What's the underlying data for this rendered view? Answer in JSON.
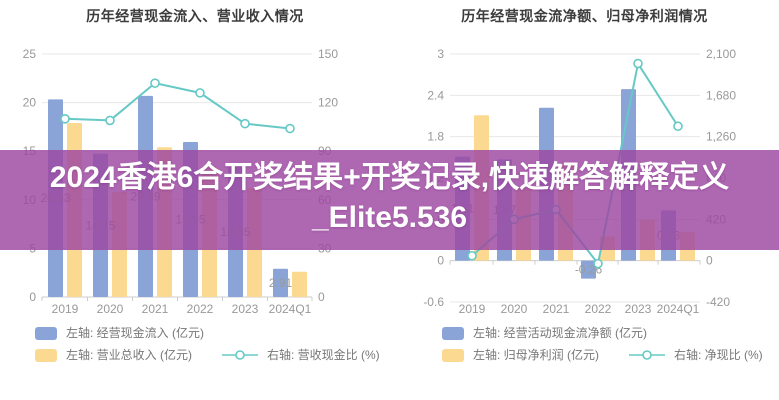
{
  "banner": {
    "line1": "2024香港6合开奖结果+开奖记录,快速解答解释定义",
    "line2": "_Elite5.536",
    "bg_color": "#9C47A1",
    "text_color": "#ffffff"
  },
  "chart_data": [
    {
      "type": "bar+line",
      "title": "历年经营现金流入、营业收入情况",
      "categories": [
        "2019",
        "2020",
        "2021",
        "2022",
        "2023",
        "2024Q1"
      ],
      "left_axis": {
        "ticks": [
          25,
          20,
          15,
          10,
          5,
          0
        ],
        "labels": [
          "25",
          "20",
          "15",
          "10",
          "5",
          "0"
        ],
        "min": 0,
        "max": 25
      },
      "right_axis": {
        "labels": [
          "150",
          "120",
          "90",
          "60",
          "30",
          "0"
        ],
        "min": 0,
        "max": 150
      },
      "series": [
        {
          "name": "左轴: 经营现金流入 (亿元)",
          "kind": "bar",
          "axis": "left",
          "color": "#8aa4d8",
          "values": [
            20.33,
            14.75,
            20.69,
            15.95,
            13.35,
            2.91
          ],
          "labels": [
            "20.33",
            "14.75",
            "20.69",
            "15.95",
            "13.35",
            "2.91"
          ]
        },
        {
          "name": "左轴: 营业总收入 (亿元)",
          "kind": "bar",
          "axis": "left",
          "color": "#fbd991",
          "values": [
            17.9,
            10.8,
            15.4,
            13.4,
            11.2,
            2.6
          ],
          "labels": [
            "",
            "",
            "",
            "",
            "",
            ""
          ]
        },
        {
          "name": "右轴: 营收现金比 (%)",
          "kind": "line",
          "axis": "right",
          "color": "#66c9c5",
          "values": [
            110,
            109,
            132,
            126,
            107,
            104
          ],
          "labels": [
            "",
            "",
            "",
            "",
            "",
            ""
          ]
        }
      ]
    },
    {
      "type": "bar+line",
      "title": "历年经营现金流净额、归母净利润情况",
      "categories": [
        "2019",
        "2020",
        "2021",
        "2022",
        "2023",
        "2024Q1"
      ],
      "left_axis": {
        "ticks": [
          3,
          2.4,
          1.8,
          1.2,
          0.6,
          0,
          -0.6
        ],
        "labels": [
          "3",
          "2.4",
          "1.8",
          "1.2",
          "0.6",
          "0",
          "-0.6"
        ],
        "min": -0.6,
        "max": 3
      },
      "right_axis": {
        "labels": [
          "2,100",
          "1,680",
          "1,260",
          "840",
          "420",
          "0",
          "-420"
        ],
        "min": -420,
        "max": 2100
      },
      "series": [
        {
          "name": "左轴: 经营活动现金流净额 (亿元)",
          "kind": "bar",
          "axis": "left",
          "color": "#8aa4d8",
          "values": [
            1.51,
            1.47,
            2.22,
            -0.26,
            2.49,
            0.73
          ],
          "labels": [
            "1.51",
            "1.47",
            "",
            "-0.26",
            "",
            "0.73"
          ]
        },
        {
          "name": "左轴: 归母净利润 (亿元)",
          "kind": "bar",
          "axis": "left",
          "color": "#fbd991",
          "values": [
            2.11,
            1.05,
            1.4,
            0.35,
            0.6,
            0.42
          ],
          "labels": [
            "",
            "",
            "",
            "",
            "",
            ""
          ]
        },
        {
          "name": "右轴: 净现比 (%)",
          "kind": "line",
          "axis": "right",
          "color": "#66c9c5",
          "values": [
            50,
            420,
            520,
            -30,
            2003,
            1366
          ],
          "labels": [
            "",
            "",
            "",
            "",
            "",
            ""
          ]
        }
      ]
    }
  ],
  "style_colors": {
    "grid": "#e7e7e7",
    "axis_line": "#cccccc",
    "tick_text": "#999999",
    "bar_label_text": "#9a9a9a",
    "marker_fill": "#ffffff"
  }
}
